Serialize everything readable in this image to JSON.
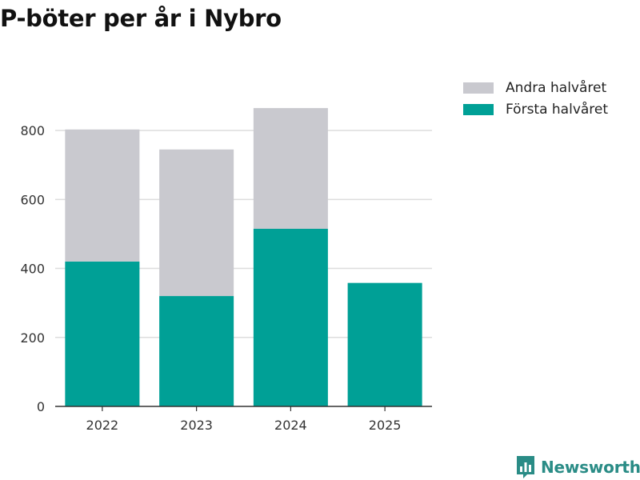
{
  "title": "P-böter per år i Nybro",
  "brand": {
    "name": "Newsworthy",
    "icon": "newsworthy-logo-icon"
  },
  "colors": {
    "first_half": "#00a096",
    "second_half": "#c9c9cf",
    "grid": "#dddddd",
    "axis": "#333333",
    "brand": "#2a8c86"
  },
  "chart_data": {
    "type": "bar",
    "stacked": true,
    "title": "P-böter per år i Nybro",
    "xlabel": "",
    "ylabel": "",
    "categories": [
      "2022",
      "2023",
      "2024",
      "2025"
    ],
    "series": [
      {
        "name": "Första halvåret",
        "color": "#00a096",
        "values": [
          420,
          320,
          515,
          358
        ]
      },
      {
        "name": "Andra halvåret",
        "color": "#c9c9cf",
        "values": [
          383,
          425,
          350,
          0
        ]
      }
    ],
    "ylim": [
      0,
      900
    ],
    "yticks": [
      0,
      200,
      400,
      600,
      800
    ],
    "grid": true,
    "legend_position": "top-right"
  },
  "legend": [
    {
      "label": "Andra halvåret",
      "color": "#c9c9cf"
    },
    {
      "label": "Första halvåret",
      "color": "#00a096"
    }
  ]
}
